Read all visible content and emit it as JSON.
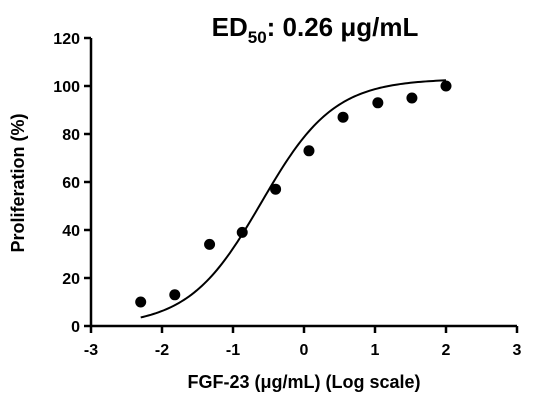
{
  "chart_data": {
    "type": "scatter",
    "title_prefix": "ED",
    "title_subscript": "50",
    "title_suffix": ": 0.26 μg/mL",
    "xlabel": "FGF-23 (μg/mL) (Log scale)",
    "ylabel": "Proliferation (%)",
    "xlim": [
      -3,
      3
    ],
    "ylim": [
      0,
      120
    ],
    "xticks": [
      -3,
      -2,
      -1,
      0,
      1,
      2,
      3
    ],
    "yticks": [
      0,
      20,
      40,
      60,
      80,
      100,
      120
    ],
    "grid": false,
    "x": [
      -2.3,
      -1.82,
      -1.33,
      -0.87,
      -0.4,
      0.07,
      0.55,
      1.04,
      1.52,
      2.0
    ],
    "y": [
      10,
      13,
      34,
      39,
      57,
      73,
      87,
      93,
      95,
      100
    ],
    "fit_curve": {
      "type": "sigmoid",
      "x_range": [
        -2.3,
        2.0
      ],
      "bottom": 0,
      "top": 103,
      "log_ec50": -0.6,
      "hill_slope": 0.85
    },
    "point_color": "#000000",
    "line_color": "#000000"
  }
}
